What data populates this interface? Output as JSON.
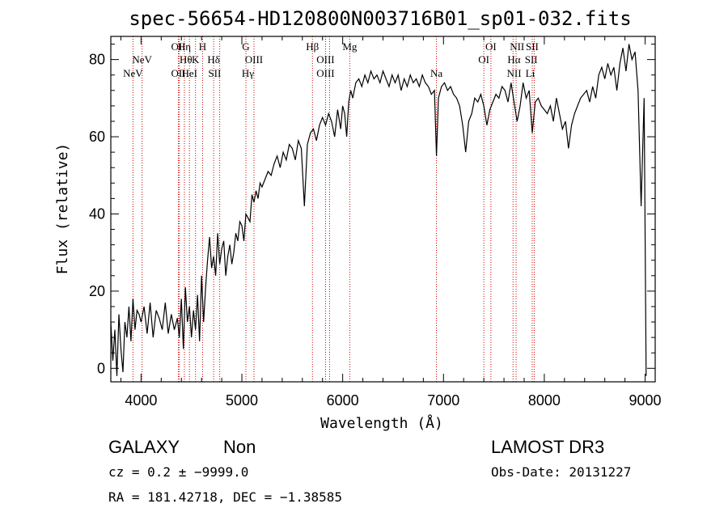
{
  "chart_data": {
    "type": "line",
    "title": "spec-56654-HD120800N003716B01_sp01-032.fits",
    "xlabel": "Wavelength (Å)",
    "ylabel": "Flux (relative)",
    "xlim": [
      3700,
      9100
    ],
    "ylim": [
      -3.5,
      86
    ],
    "x_ticks": [
      4000,
      5000,
      6000,
      7000,
      8000,
      9000
    ],
    "y_ticks": [
      0,
      20,
      40,
      60,
      80
    ],
    "grid": false,
    "series": [
      {
        "color": "#000000",
        "x": [
          3700,
          3720,
          3740,
          3760,
          3780,
          3800,
          3820,
          3840,
          3860,
          3880,
          3900,
          3920,
          3940,
          3960,
          3980,
          4000,
          4030,
          4060,
          4090,
          4120,
          4150,
          4180,
          4210,
          4240,
          4270,
          4300,
          4330,
          4360,
          4380,
          4400,
          4420,
          4440,
          4460,
          4480,
          4500,
          4520,
          4540,
          4560,
          4580,
          4600,
          4620,
          4640,
          4660,
          4680,
          4700,
          4720,
          4740,
          4760,
          4780,
          4800,
          4820,
          4840,
          4860,
          4880,
          4900,
          4920,
          4940,
          4960,
          4980,
          5000,
          5020,
          5040,
          5060,
          5080,
          5100,
          5120,
          5140,
          5160,
          5180,
          5200,
          5230,
          5260,
          5290,
          5320,
          5350,
          5380,
          5410,
          5440,
          5470,
          5500,
          5530,
          5560,
          5590,
          5620,
          5650,
          5680,
          5710,
          5740,
          5770,
          5800,
          5830,
          5860,
          5890,
          5920,
          5950,
          5980,
          6000,
          6020,
          6040,
          6060,
          6080,
          6100,
          6130,
          6160,
          6190,
          6220,
          6250,
          6280,
          6310,
          6340,
          6370,
          6400,
          6430,
          6460,
          6490,
          6520,
          6550,
          6580,
          6610,
          6640,
          6670,
          6700,
          6730,
          6760,
          6790,
          6820,
          6850,
          6880,
          6910,
          6930,
          6950,
          6980,
          7010,
          7040,
          7070,
          7100,
          7130,
          7160,
          7190,
          7220,
          7250,
          7280,
          7310,
          7340,
          7370,
          7400,
          7430,
          7460,
          7490,
          7520,
          7550,
          7580,
          7610,
          7640,
          7670,
          7700,
          7730,
          7760,
          7790,
          7820,
          7850,
          7880,
          7910,
          7940,
          7970,
          8000,
          8030,
          8060,
          8090,
          8120,
          8150,
          8180,
          8210,
          8240,
          8270,
          8300,
          8330,
          8360,
          8390,
          8420,
          8450,
          8480,
          8510,
          8540,
          8570,
          8600,
          8630,
          8660,
          8690,
          8720,
          8750,
          8780,
          8810,
          8840,
          8870,
          8900,
          8930,
          8960,
          8990,
          9010
        ],
        "y": [
          12,
          2,
          10,
          -2,
          14,
          5,
          -1,
          12,
          8,
          16,
          7,
          18,
          10,
          15,
          14,
          12,
          16,
          9,
          17,
          8,
          15,
          13,
          10,
          17,
          9,
          14,
          10,
          13,
          8,
          18,
          5,
          21,
          12,
          16,
          8,
          15,
          10,
          19,
          7,
          24,
          12,
          21,
          28,
          34,
          26,
          29,
          24,
          35,
          27,
          31,
          33,
          24,
          29,
          32,
          27,
          30,
          35,
          33,
          38,
          37,
          33,
          40,
          39,
          38,
          45,
          43,
          46,
          44,
          48,
          47,
          49,
          51,
          50,
          53,
          55,
          52,
          56,
          54,
          58,
          57,
          54,
          59,
          57,
          42,
          58,
          61,
          62,
          59,
          63,
          65,
          63,
          66,
          64,
          60,
          67,
          62,
          68,
          66,
          60,
          69,
          72,
          70,
          74,
          75,
          73,
          76,
          74,
          77,
          75,
          76,
          74,
          77,
          75,
          73,
          76,
          74,
          76,
          72,
          75,
          73,
          76,
          74,
          75,
          73,
          76,
          74,
          73,
          71,
          72,
          55,
          70,
          73,
          74,
          72,
          73,
          71,
          70,
          68,
          63,
          56,
          64,
          66,
          70,
          69,
          71,
          68,
          63,
          67,
          69,
          71,
          70,
          73,
          72,
          69,
          74,
          69,
          64,
          68,
          74,
          70,
          72,
          61,
          69,
          70,
          68,
          67,
          66,
          68,
          64,
          70,
          66,
          62,
          64,
          57,
          63,
          66,
          68,
          70,
          71,
          72,
          69,
          73,
          70,
          76,
          78,
          75,
          79,
          76,
          78,
          72,
          79,
          83,
          77,
          84,
          80,
          82,
          72,
          42,
          70,
          -2
        ]
      }
    ],
    "line_markers": [
      {
        "wavelength": 3920,
        "label": "NeV",
        "row": 2
      },
      {
        "wavelength": 4010,
        "label": "NeV",
        "row": 1
      },
      {
        "wavelength": 4370,
        "label": "OII",
        "row": 0
      },
      {
        "wavelength": 4370,
        "label": "OII",
        "row": 2
      },
      {
        "wavelength": 4430,
        "label": "Hη",
        "row": 0
      },
      {
        "wavelength": 4445,
        "label": "Hθ",
        "row": 1
      },
      {
        "wavelength": 4480,
        "label": "HeI",
        "row": 2
      },
      {
        "wavelength": 4540,
        "label": "K",
        "row": 1
      },
      {
        "wavelength": 4610,
        "label": "H",
        "row": 0
      },
      {
        "wavelength": 4720,
        "label": "Hδ",
        "row": 1
      },
      {
        "wavelength": 4730,
        "label": "SII",
        "row": 2
      },
      {
        "wavelength": 5040,
        "label": "G",
        "row": 0
      },
      {
        "wavelength": 5120,
        "label": "OIII",
        "row": 1
      },
      {
        "wavelength": 5060,
        "label": "Hγ",
        "row": 2
      },
      {
        "wavelength": 5700,
        "label": "Hβ",
        "row": 0
      },
      {
        "wavelength": 5830,
        "label": "OIII",
        "row": 1
      },
      {
        "wavelength": 5830,
        "label": "OIII",
        "row": 2
      },
      {
        "wavelength": 6070,
        "label": "Mg",
        "row": 0
      },
      {
        "wavelength": 6930,
        "label": "Na",
        "row": 2
      },
      {
        "wavelength": 7470,
        "label": "OI",
        "row": 0
      },
      {
        "wavelength": 7400,
        "label": "OI",
        "row": 1
      },
      {
        "wavelength": 7730,
        "label": "NII",
        "row": 0
      },
      {
        "wavelength": 7700,
        "label": "Hα",
        "row": 1
      },
      {
        "wavelength": 7700,
        "label": "NII",
        "row": 2
      },
      {
        "wavelength": 7880,
        "label": "SII",
        "row": 0
      },
      {
        "wavelength": 7870,
        "label": "SII",
        "row": 1
      },
      {
        "wavelength": 7860,
        "label": "Li",
        "row": 2
      }
    ],
    "marker_lines": [
      3920,
      4010,
      4370,
      4380,
      4430,
      4480,
      4540,
      4610,
      4720,
      4780,
      5040,
      5120,
      5700,
      5830,
      5870,
      6070,
      6930,
      7400,
      7470,
      7690,
      7720,
      7880,
      7900
    ],
    "marker_color": "#cc0000"
  },
  "info": {
    "object_class": "GALAXY",
    "subclass": "Non",
    "survey": "LAMOST DR3",
    "cz_line": "cz = 0.2 ± −9999.0",
    "obs_date": "Obs-Date: 20131227",
    "radec_line": "RA = 181.42718, DEC =  −1.38585"
  }
}
